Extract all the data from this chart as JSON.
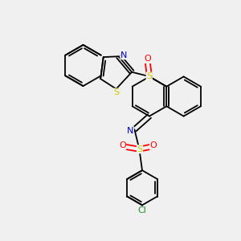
{
  "bg_color": "#f0f0f0",
  "atom_colors": {
    "C": "#000000",
    "N": "#0000cc",
    "O": "#ff0000",
    "S": "#cccc00",
    "Cl": "#228B22"
  },
  "bond_color": "#000000"
}
